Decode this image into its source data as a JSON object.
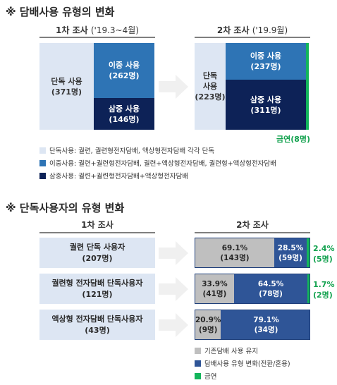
{
  "section1": {
    "title": "※ 담배사용 유형의 변화",
    "survey1": {
      "label": "1차 조사",
      "period": "('19.3~4월)"
    },
    "survey2": {
      "label": "2차 조사",
      "period": "('19.9월)"
    },
    "quit_label": "금연(8명)",
    "legend": [
      {
        "text": "단독사용: 궐련, 궐련형전자담배, 액상형전자담배 각각 단독",
        "color": "#dde6f3"
      },
      {
        "text": "이중사용: 궐련+궐련형전자담배, 궐련+액상형전자담배, 궐련형+액상형전자담배",
        "color": "#2e74b5"
      },
      {
        "text": "삼중사용: 궐련+궐련형전자담배+액상형전자담배",
        "color": "#0d2257"
      }
    ]
  },
  "section2": {
    "title": "※ 단독사용자의 유형 변화",
    "col1": "1차 조사",
    "col2": "2차 조사",
    "legend": [
      {
        "text": "기존담배 사용 유지",
        "color": "#bfbfbf"
      },
      {
        "text": "담배사용 유형 변화(전환/혼용)",
        "color": "#2f5597"
      },
      {
        "text": "금연",
        "color": "#13b55b"
      }
    ]
  },
  "chart_data": [
    {
      "type": "bar",
      "title": "담배사용 유형의 변화",
      "categories": [
        "1차 조사 ('19.3~4월)",
        "2차 조사 ('19.9월)"
      ],
      "series": [
        {
          "name": "단독 사용",
          "values": [
            371,
            223
          ],
          "labels": [
            "단독 사용\n(371명)",
            "단독\n사용\n(223명)"
          ]
        },
        {
          "name": "이중 사용",
          "values": [
            262,
            237
          ],
          "labels": [
            "이중 사용\n(262명)",
            "이중 사용\n(237명)"
          ]
        },
        {
          "name": "삼중 사용",
          "values": [
            146,
            311
          ],
          "labels": [
            "삼중 사용\n(146명)",
            "삼중 사용\n(311명)"
          ]
        },
        {
          "name": "금연",
          "values": [
            0,
            8
          ]
        }
      ]
    },
    {
      "type": "bar",
      "title": "단독사용자의 유형 변화",
      "categories": [
        {
          "name": "궐련 단독 사용자",
          "count": "(207명)"
        },
        {
          "name": "궐련형 전자담배 단독사용자",
          "count": "(121명)"
        },
        {
          "name": "액상형 전자담배 단독사용자",
          "count": "(43명)"
        }
      ],
      "series": [
        {
          "name": "기존담배 사용 유지",
          "values": [
            69.1,
            33.9,
            20.9
          ],
          "labels": [
            "69.1%\n(143명)",
            "33.9%\n(41명)",
            "20.9%\n(9명)"
          ]
        },
        {
          "name": "담배사용 유형 변화(전환/혼용)",
          "values": [
            28.5,
            64.5,
            79.1
          ],
          "labels": [
            "28.5%\n(59명)",
            "64.5%\n(78명)",
            "79.1%\n(34명)"
          ]
        },
        {
          "name": "금연",
          "values": [
            2.4,
            1.7,
            0
          ],
          "labels": [
            "2.4%\n(5명)",
            "1.7%\n(2명)",
            ""
          ]
        }
      ],
      "unit": "%"
    }
  ]
}
